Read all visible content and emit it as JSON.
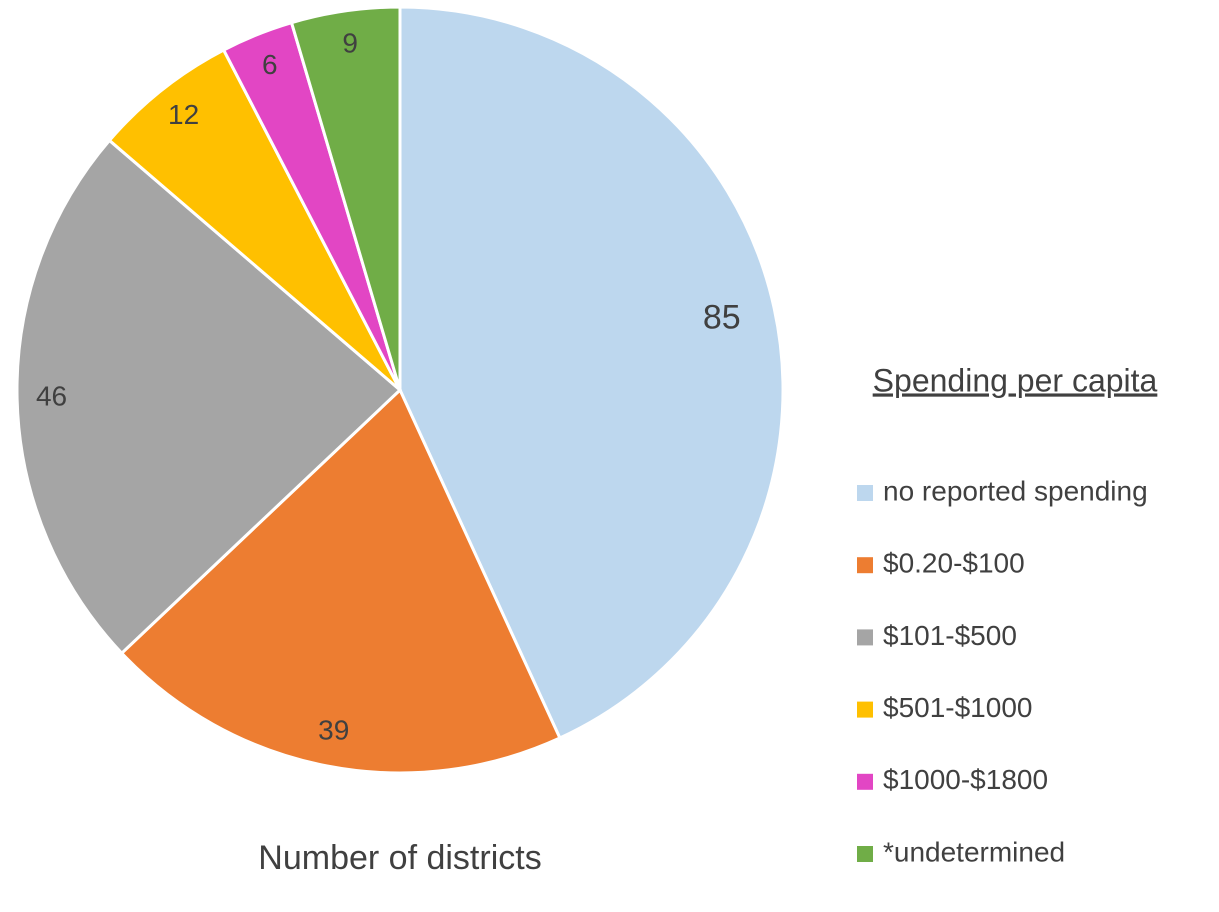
{
  "chart_data": {
    "type": "pie",
    "title": "Number of districts",
    "legend_title": "Spending per capita",
    "categories": [
      "no reported spending",
      "$0.20-$100",
      "$101-$500",
      "$501-$1000",
      "$1000-$1800",
      "*undetermined"
    ],
    "values": [
      85,
      39,
      46,
      12,
      6,
      9
    ],
    "colors": [
      "#bdd7ee",
      "#ed7d31",
      "#a5a5a5",
      "#ffc000",
      "#e246c4",
      "#70ad47"
    ],
    "legend": "right"
  }
}
